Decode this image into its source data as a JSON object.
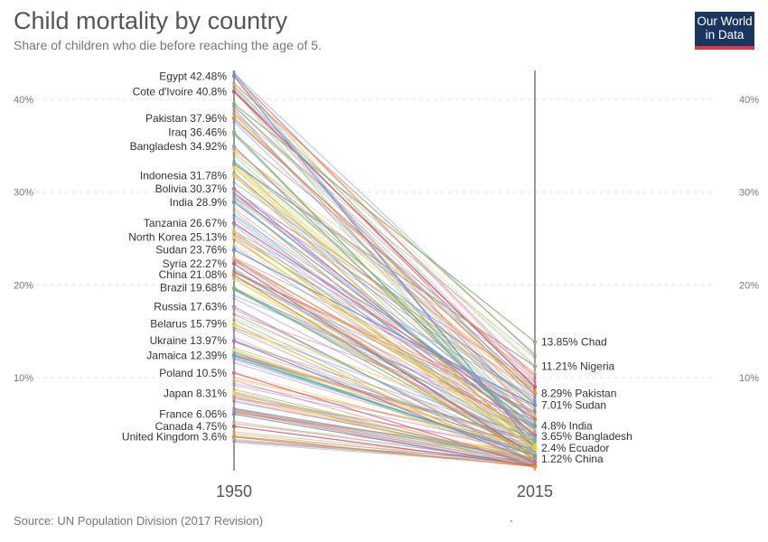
{
  "header": {
    "title": "Child mortality by country",
    "subtitle": "Share of children who die before reaching the age of 5."
  },
  "logo": {
    "line1": "Our World",
    "line2": "in Data"
  },
  "footer": {
    "source": "Source: UN Population Division (2017 Revision)"
  },
  "chart_data": {
    "type": "slope",
    "title": "Child mortality by country",
    "subtitle": "Share of children who die before reaching the age of 5.",
    "x": [
      "1950",
      "2015"
    ],
    "ylim": [
      0,
      45
    ],
    "y_ticks": [
      10,
      20,
      30,
      40
    ],
    "y_tick_labels": [
      "10%",
      "20%",
      "30%",
      "40%"
    ],
    "grid": true,
    "series": [
      {
        "name": "Egypt",
        "values": [
          42.48,
          2.4
        ]
      },
      {
        "name": "Cote d'Ivoire",
        "values": [
          40.8,
          9.0
        ]
      },
      {
        "name": "Pakistan",
        "values": [
          37.96,
          8.29
        ]
      },
      {
        "name": "Iraq",
        "values": [
          36.46,
          3.2
        ]
      },
      {
        "name": "Bangladesh",
        "values": [
          34.92,
          3.65
        ]
      },
      {
        "name": "Indonesia",
        "values": [
          31.78,
          2.7
        ]
      },
      {
        "name": "Bolivia",
        "values": [
          30.37,
          3.8
        ]
      },
      {
        "name": "India",
        "values": [
          28.9,
          4.8
        ]
      },
      {
        "name": "Tanzania",
        "values": [
          26.67,
          5.5
        ]
      },
      {
        "name": "North Korea",
        "values": [
          25.13,
          2.3
        ]
      },
      {
        "name": "Sudan",
        "values": [
          23.76,
          7.01
        ]
      },
      {
        "name": "Syria",
        "values": [
          22.27,
          1.5
        ]
      },
      {
        "name": "China",
        "values": [
          21.08,
          1.22
        ]
      },
      {
        "name": "Brazil",
        "values": [
          19.68,
          1.6
        ]
      },
      {
        "name": "Russia",
        "values": [
          17.63,
          0.9
        ]
      },
      {
        "name": "Belarus",
        "values": [
          15.79,
          0.5
        ]
      },
      {
        "name": "Ukraine",
        "values": [
          13.97,
          0.9
        ]
      },
      {
        "name": "Jamaica",
        "values": [
          12.39,
          1.6
        ]
      },
      {
        "name": "Poland",
        "values": [
          10.5,
          0.5
        ]
      },
      {
        "name": "Japan",
        "values": [
          8.31,
          0.3
        ]
      },
      {
        "name": "France",
        "values": [
          6.06,
          0.4
        ]
      },
      {
        "name": "Canada",
        "values": [
          4.75,
          0.5
        ]
      },
      {
        "name": "United Kingdom",
        "values": [
          3.6,
          0.4
        ]
      },
      {
        "name": "Chad",
        "values": [
          39.5,
          13.85
        ]
      },
      {
        "name": "Nigeria",
        "values": [
          33.0,
          11.21
        ]
      },
      {
        "name": "Ecuador",
        "values": [
          25.8,
          2.4
        ]
      }
    ],
    "left_labels": [
      {
        "text": "Egypt 42.48%",
        "value": 42.48
      },
      {
        "text": "Cote d'Ivoire 40.8%",
        "value": 40.8
      },
      {
        "text": "Pakistan 37.96%",
        "value": 37.96
      },
      {
        "text": "Iraq 36.46%",
        "value": 36.46
      },
      {
        "text": "Bangladesh 34.92%",
        "value": 34.92
      },
      {
        "text": "Indonesia 31.78%",
        "value": 31.78
      },
      {
        "text": "Bolivia 30.37%",
        "value": 30.37
      },
      {
        "text": "India 28.9%",
        "value": 28.9
      },
      {
        "text": "Tanzania 26.67%",
        "value": 26.67
      },
      {
        "text": "North Korea 25.13%",
        "value": 25.13
      },
      {
        "text": "Sudan 23.76%",
        "value": 23.76
      },
      {
        "text": "Syria 22.27%",
        "value": 22.27
      },
      {
        "text": "China 21.08%",
        "value": 21.08
      },
      {
        "text": "Brazil 19.68%",
        "value": 19.68
      },
      {
        "text": "Russia 17.63%",
        "value": 17.63
      },
      {
        "text": "Belarus 15.79%",
        "value": 15.79
      },
      {
        "text": "Ukraine 13.97%",
        "value": 13.97
      },
      {
        "text": "Jamaica 12.39%",
        "value": 12.39
      },
      {
        "text": "Poland 10.5%",
        "value": 10.5
      },
      {
        "text": "Japan 8.31%",
        "value": 8.31
      },
      {
        "text": "France 6.06%",
        "value": 6.06
      },
      {
        "text": "Canada 4.75%",
        "value": 4.75
      },
      {
        "text": "United Kingdom 3.6%",
        "value": 3.6
      }
    ],
    "right_labels": [
      {
        "text": "13.85% Chad",
        "value": 13.85
      },
      {
        "text": "11.21% Nigeria",
        "value": 11.21
      },
      {
        "text": "8.29% Pakistan",
        "value": 8.29
      },
      {
        "text": "7.01% Sudan",
        "value": 7.01
      },
      {
        "text": "4.8% India",
        "value": 4.8
      },
      {
        "text": "3.65% Bangladesh",
        "value": 3.65
      },
      {
        "text": "2.4% Ecuador",
        "value": 2.4
      },
      {
        "text": "1.22% China",
        "value": 1.22
      }
    ],
    "colors": [
      "#6d8ed6",
      "#d9546f",
      "#e68a3f",
      "#7cb87a",
      "#9aa0a8",
      "#e6c844",
      "#b073c6",
      "#4fa8c1",
      "#d96f8a",
      "#f2d04a"
    ]
  }
}
